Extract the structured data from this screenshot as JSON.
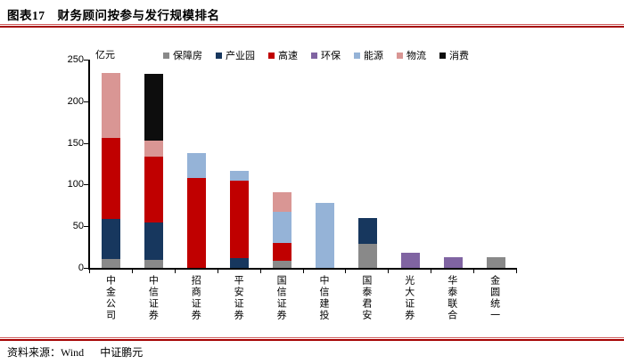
{
  "title": {
    "prefix": "图表17",
    "text": "财务顾问按参与发行规模排名"
  },
  "y_axis": {
    "unit_label": "亿元",
    "ticks": [
      0,
      50,
      100,
      150,
      200,
      250
    ],
    "max": 250
  },
  "footer": {
    "source_label": "资料来源：Wind",
    "source_org": "中证鹏元"
  },
  "accent_colors": {
    "rule_red": "#a40000",
    "axis_black": "#000000"
  },
  "chart_data": {
    "type": "bar",
    "stacked": true,
    "title": "财务顾问按参与发行规模排名",
    "ylabel": "亿元",
    "ylim": [
      0,
      250
    ],
    "grid": false,
    "legend_position": "top",
    "categories": [
      "中金公司",
      "中信证券",
      "招商证券",
      "平安证券",
      "国信证券",
      "中信建投",
      "国泰君安",
      "光大证券",
      "华泰联合",
      "金圆统一"
    ],
    "series": [
      {
        "name": "保障房",
        "color": "#898989",
        "values": [
          11,
          10,
          0,
          0,
          9,
          0,
          29,
          0,
          0,
          13
        ]
      },
      {
        "name": "产业园",
        "color": "#17375e",
        "values": [
          48,
          44,
          0,
          12,
          0,
          0,
          31,
          0,
          0,
          0
        ]
      },
      {
        "name": "高速",
        "color": "#c00000",
        "values": [
          97,
          80,
          108,
          93,
          21,
          0,
          0,
          0,
          0,
          0
        ]
      },
      {
        "name": "环保",
        "color": "#8064a2",
        "values": [
          0,
          0,
          0,
          0,
          0,
          0,
          0,
          18,
          13,
          0
        ]
      },
      {
        "name": "能源",
        "color": "#95b3d7",
        "values": [
          0,
          0,
          30,
          11,
          37,
          78,
          0,
          0,
          0,
          0
        ]
      },
      {
        "name": "物流",
        "color": "#d99694",
        "values": [
          78,
          19,
          0,
          0,
          24,
          0,
          0,
          0,
          0,
          0
        ]
      },
      {
        "name": "消费",
        "color": "#0d0d0d",
        "values": [
          0,
          80,
          0,
          0,
          0,
          0,
          0,
          0,
          0,
          0
        ]
      }
    ],
    "category_totals": [
      234,
      233,
      138,
      116,
      91,
      78,
      60,
      18,
      13,
      13
    ]
  }
}
